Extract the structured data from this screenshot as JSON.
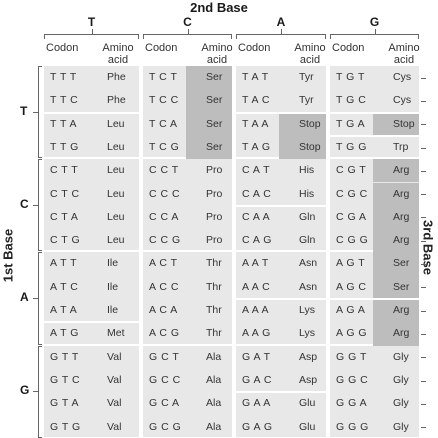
{
  "second_base_title": "2nd Base",
  "first_base_title": "1st Base",
  "third_base_title": "3rd Base",
  "bases": [
    "T",
    "C",
    "A",
    "G"
  ],
  "col_header_codon": "Codon",
  "col_header_amino": "Amino acid",
  "colors": {
    "cell_bg": "#e8e8e8",
    "highlight": "#bdbdbd",
    "line": "#8a8a8a"
  },
  "table": [
    {
      "first": "T",
      "rows": [
        [
          [
            "TTT",
            "Phe"
          ],
          [
            "TCT",
            "Ser"
          ],
          [
            "TAT",
            "Tyr"
          ],
          [
            "TGT",
            "Cys"
          ]
        ],
        [
          [
            "TTC",
            "Phe"
          ],
          [
            "TCC",
            "Ser"
          ],
          [
            "TAC",
            "Tyr"
          ],
          [
            "TGC",
            "Cys"
          ]
        ],
        [
          [
            "TTA",
            "Leu"
          ],
          [
            "TCA",
            "Ser"
          ],
          [
            "TAA",
            "Stop"
          ],
          [
            "TGA",
            "Stop"
          ]
        ],
        [
          [
            "TTG",
            "Leu"
          ],
          [
            "TCG",
            "Ser"
          ],
          [
            "TAG",
            "Stop"
          ],
          [
            "TGG",
            "Trp"
          ]
        ]
      ]
    },
    {
      "first": "C",
      "rows": [
        [
          [
            "CTT",
            "Leu"
          ],
          [
            "CCT",
            "Pro"
          ],
          [
            "CAT",
            "His"
          ],
          [
            "CGT",
            "Arg"
          ]
        ],
        [
          [
            "CTC",
            "Leu"
          ],
          [
            "CCC",
            "Pro"
          ],
          [
            "CAC",
            "His"
          ],
          [
            "CGC",
            "Arg"
          ]
        ],
        [
          [
            "CTA",
            "Leu"
          ],
          [
            "CCA",
            "Pro"
          ],
          [
            "CAA",
            "Gln"
          ],
          [
            "CGA",
            "Arg"
          ]
        ],
        [
          [
            "CTG",
            "Leu"
          ],
          [
            "CCG",
            "Pro"
          ],
          [
            "CAG",
            "Gln"
          ],
          [
            "CGG",
            "Arg"
          ]
        ]
      ]
    },
    {
      "first": "A",
      "rows": [
        [
          [
            "ATT",
            "Ile"
          ],
          [
            "ACT",
            "Thr"
          ],
          [
            "AAT",
            "Asn"
          ],
          [
            "AGT",
            "Ser"
          ]
        ],
        [
          [
            "ATC",
            "Ile"
          ],
          [
            "ACC",
            "Thr"
          ],
          [
            "AAC",
            "Asn"
          ],
          [
            "AGC",
            "Ser"
          ]
        ],
        [
          [
            "ATA",
            "Ile"
          ],
          [
            "ACA",
            "Thr"
          ],
          [
            "AAA",
            "Lys"
          ],
          [
            "AGA",
            "Arg"
          ]
        ],
        [
          [
            "ATG",
            "Met"
          ],
          [
            "ACG",
            "Thr"
          ],
          [
            "AAG",
            "Lys"
          ],
          [
            "AGG",
            "Arg"
          ]
        ]
      ]
    },
    {
      "first": "G",
      "rows": [
        [
          [
            "GTT",
            "Val"
          ],
          [
            "GCT",
            "Ala"
          ],
          [
            "GAT",
            "Asp"
          ],
          [
            "GGT",
            "Gly"
          ]
        ],
        [
          [
            "GTC",
            "Val"
          ],
          [
            "GCC",
            "Ala"
          ],
          [
            "GAC",
            "Asp"
          ],
          [
            "GGC",
            "Gly"
          ]
        ],
        [
          [
            "GTA",
            "Val"
          ],
          [
            "GCA",
            "Ala"
          ],
          [
            "GAA",
            "Glu"
          ],
          [
            "GGA",
            "Gly"
          ]
        ],
        [
          [
            "GTG",
            "Val"
          ],
          [
            "GCG",
            "Ala"
          ],
          [
            "GAG",
            "Glu"
          ],
          [
            "GGG",
            "Gly"
          ]
        ]
      ]
    }
  ]
}
